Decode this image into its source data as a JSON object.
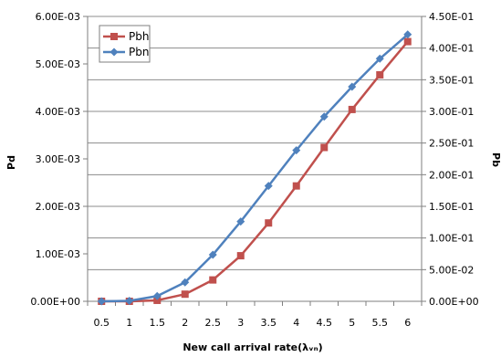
{
  "chart_data": {
    "type": "line",
    "title": "",
    "xlabel": "New call arrival rate(λᵥₙ)",
    "ylabel_left": "Pd",
    "ylabel_right": "Pb",
    "categories": [
      "0.5",
      "1",
      "1.5",
      "2",
      "2.5",
      "3",
      "3.5",
      "4",
      "4.5",
      "5",
      "5.5",
      "6"
    ],
    "y_left": {
      "min": 0,
      "max": 0.006,
      "ticks": [
        {
          "value": 0,
          "label": "0.00E+00"
        },
        {
          "value": 0.001,
          "label": "1.00E-03"
        },
        {
          "value": 0.002,
          "label": "2.00E-03"
        },
        {
          "value": 0.003,
          "label": "3.00E-03"
        },
        {
          "value": 0.004,
          "label": "4.00E-03"
        },
        {
          "value": 0.005,
          "label": "5.00E-03"
        },
        {
          "value": 0.006,
          "label": "6.00E-03"
        }
      ]
    },
    "y_right": {
      "min": 0,
      "max": 0.45,
      "ticks": [
        {
          "value": 0,
          "label": "0.00E+00"
        },
        {
          "value": 0.05,
          "label": "5.00E-02"
        },
        {
          "value": 0.1,
          "label": "1.00E-01"
        },
        {
          "value": 0.15,
          "label": "1.50E-01"
        },
        {
          "value": 0.2,
          "label": "2.00E-01"
        },
        {
          "value": 0.25,
          "label": "2.50E-01"
        },
        {
          "value": 0.3,
          "label": "3.00E-01"
        },
        {
          "value": 0.35,
          "label": "3.50E-01"
        },
        {
          "value": 0.4,
          "label": "4.00E-01"
        },
        {
          "value": 0.45,
          "label": "4.50E-01"
        }
      ]
    },
    "grid": true,
    "legend_position": "top-left",
    "series": [
      {
        "name": "Pbh",
        "axis": "left",
        "color": "#C0504D",
        "marker": "square",
        "values": [
          0,
          0,
          2e-05,
          0.00015,
          0.00045,
          0.00096,
          0.00165,
          0.00243,
          0.00324,
          0.00404,
          0.00477,
          0.00547
        ]
      },
      {
        "name": "Pbn",
        "axis": "left",
        "color": "#4F81BD",
        "marker": "diamond",
        "values": [
          0,
          1e-05,
          0.00011,
          0.0004,
          0.00098,
          0.00168,
          0.00243,
          0.00318,
          0.00389,
          0.00452,
          0.00511,
          0.00562
        ]
      }
    ]
  }
}
